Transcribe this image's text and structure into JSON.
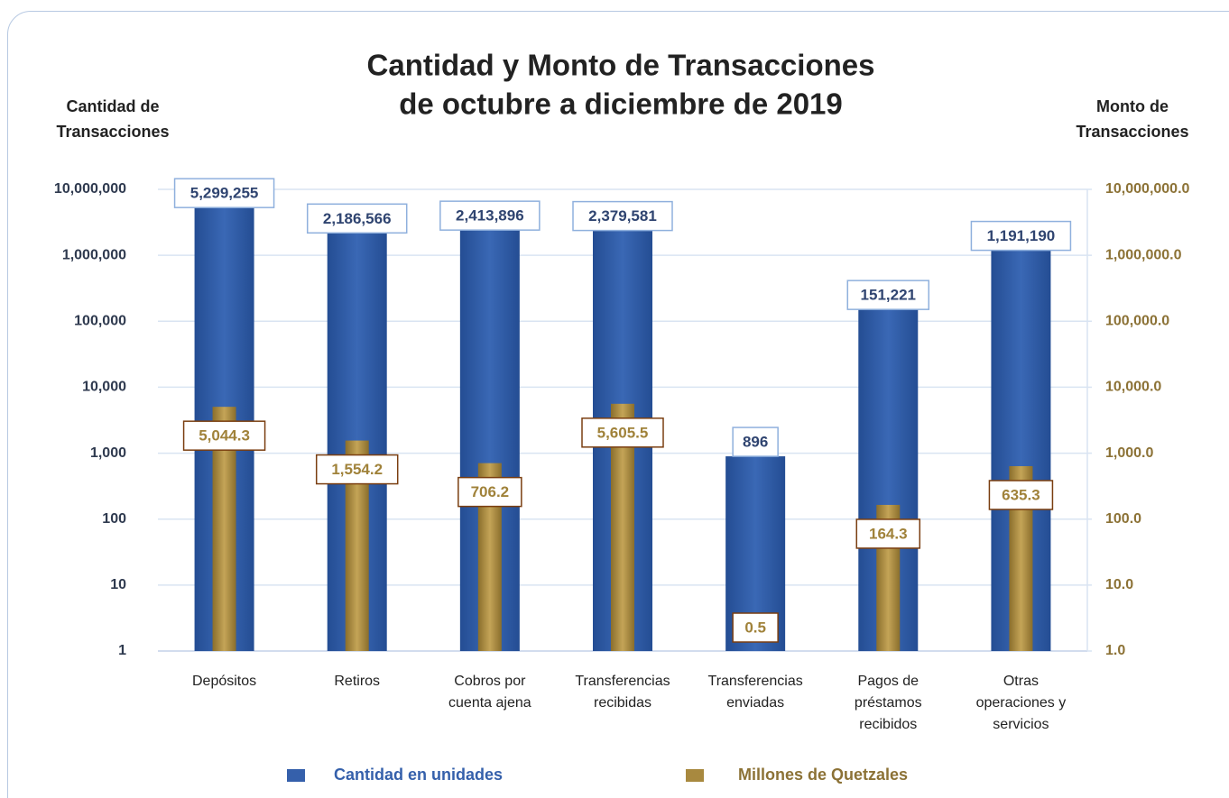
{
  "chart_data": {
    "type": "bar",
    "title": [
      "Cantidad y Monto de Transacciones",
      "de octubre a diciembre de 2019"
    ],
    "y_label": "Cantidad de Transacciones",
    "y2_label": "Monto de Transacciones",
    "categories": [
      "Depósitos",
      "Retiros",
      "Cobros por cuenta ajena",
      "Transferencias recibidas",
      "Transferencias enviadas",
      "Pagos de préstamos recibidos",
      "Otras operaciones y servicios"
    ],
    "series": [
      {
        "name": "Cantidad en unidades",
        "color": "#3560ab",
        "axis": "y",
        "values": [
          5299255,
          2186566,
          2413896,
          2379581,
          896,
          151221,
          1191190
        ],
        "value_labels": [
          "5,299,255",
          "2,186,566",
          "2,413,896",
          "2,379,581",
          "896",
          "151,221",
          "1,191,190"
        ]
      },
      {
        "name": "Millones de Quetzales",
        "color": "#a8893f",
        "axis": "y2",
        "values": [
          5044.3,
          1554.2,
          706.2,
          5605.5,
          0.5,
          164.3,
          635.3
        ],
        "value_labels": [
          "5,044.3",
          "1,554.2",
          "706.2",
          "5,605.5",
          "0.5",
          "164.3",
          "635.3"
        ]
      }
    ],
    "log_scale": true,
    "ylim": [
      1,
      10000000
    ],
    "yticks": [
      1,
      10,
      100,
      {
        "value": 1000,
        "label": "1,000"
      },
      {
        "value": 10000,
        "label": "10,000"
      },
      {
        "value": 100000,
        "label": "100,000"
      },
      {
        "value": 1000000,
        "label": "1,000,000"
      },
      {
        "value": 10000000,
        "label": "10,000,000"
      }
    ],
    "y2lim": [
      1,
      10000000
    ],
    "y2ticks": [
      {
        "value": 1,
        "label": "1.0"
      },
      {
        "value": 10,
        "label": "10.0"
      },
      {
        "value": 100,
        "label": "100.0"
      },
      {
        "value": 1000,
        "label": "1,000.0"
      },
      {
        "value": 10000,
        "label": "10,000.0"
      },
      {
        "value": 100000,
        "label": "100,000.0"
      },
      {
        "value": 1000000,
        "label": "1,000,000.0"
      },
      {
        "value": 10000000,
        "label": "10,000,000.0"
      }
    ],
    "grid": true,
    "legend": "bottom"
  }
}
